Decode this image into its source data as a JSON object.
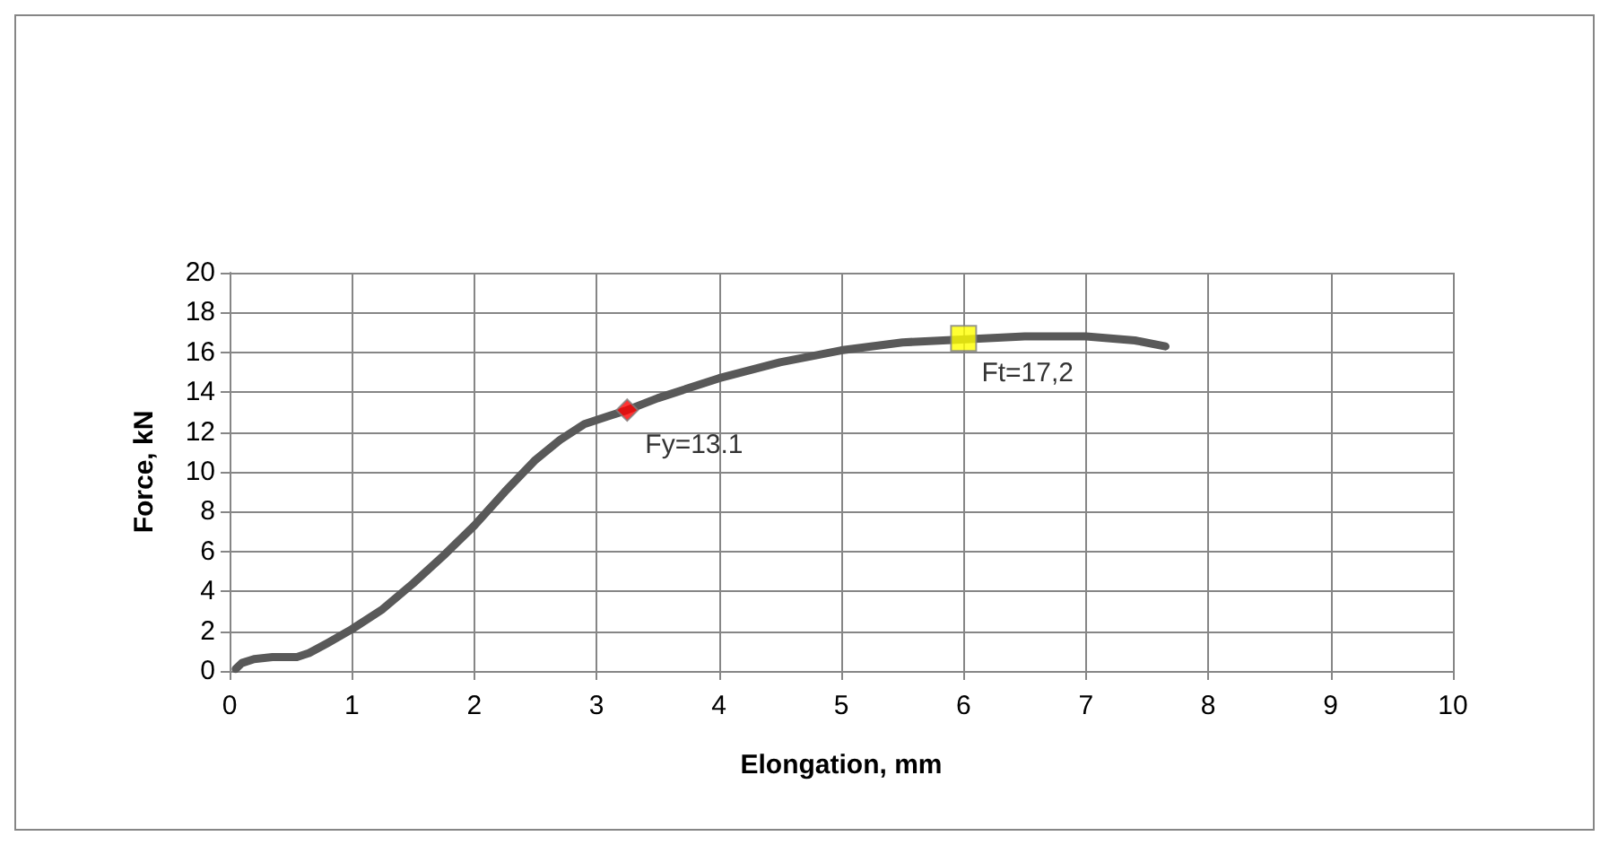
{
  "chart_data": {
    "type": "line",
    "xlabel": "Elongation, mm",
    "ylabel": "Force, kN",
    "xlim": [
      0,
      10
    ],
    "xticks": [
      0,
      1,
      2,
      3,
      4,
      5,
      6,
      7,
      8,
      9,
      10
    ],
    "ylim": [
      0,
      20
    ],
    "yticks": [
      0,
      2,
      4,
      6,
      8,
      10,
      12,
      14,
      16,
      18,
      20
    ],
    "grid": true,
    "series": [
      {
        "color": "#595959",
        "marker": "none",
        "x": [
          0.05,
          0.1,
          0.2,
          0.35,
          0.55,
          0.65,
          0.8,
          1.0,
          1.25,
          1.5,
          1.75,
          2.0,
          2.25,
          2.5,
          2.7,
          2.9,
          3.1,
          3.25,
          3.5,
          4.0,
          4.5,
          5.0,
          5.5,
          6.5,
          7.0,
          7.4,
          7.65
        ],
        "values": [
          0.1,
          0.4,
          0.6,
          0.7,
          0.7,
          0.9,
          1.4,
          2.1,
          3.1,
          4.4,
          5.8,
          7.3,
          9.0,
          10.6,
          11.6,
          12.4,
          12.8,
          13.1,
          13.7,
          14.7,
          15.5,
          16.1,
          16.5,
          16.8,
          16.8,
          16.6,
          16.3
        ]
      },
      {
        "type": "scatter",
        "color": "#ff0000",
        "marker": "diamond",
        "x": [
          3.25
        ],
        "values": [
          13.1
        ]
      },
      {
        "type": "scatter",
        "color": "#ffff00",
        "marker": "square",
        "x": [
          6.0
        ],
        "values": [
          16.7
        ]
      }
    ],
    "annotations": [
      {
        "text": "Fy=13.1",
        "x": 3.25,
        "y": 13.1
      },
      {
        "text": "Ft=17,2",
        "x": 6.0,
        "y": 16.7
      }
    ]
  }
}
